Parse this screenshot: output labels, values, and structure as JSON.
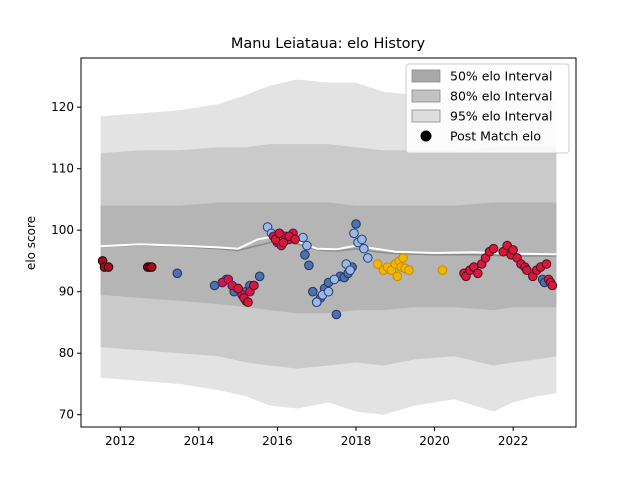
{
  "chart_data": {
    "type": "scatter",
    "title": "Manu Leiataua: elo History",
    "xlabel": "",
    "ylabel": "elo score",
    "xlim": [
      2011.0,
      2023.6
    ],
    "ylim": [
      68.0,
      128.0
    ],
    "x_ticks": [
      2012,
      2014,
      2016,
      2018,
      2020,
      2022
    ],
    "y_ticks": [
      70,
      80,
      90,
      100,
      110,
      120
    ],
    "legend_position": "top-right",
    "grid": false,
    "colors": {
      "band50": "#b5b5b5",
      "band80": "#cacaca",
      "band95": "#e3e3e3",
      "median_line": "#8c8c8c",
      "mean_line": "#ffffff",
      "red_points": "#d9173c",
      "blue_points": "#4a72b0",
      "light_blue_points": "#9ab8e8",
      "orange_points": "#f2b500",
      "purple_edge": "#4a1a6a",
      "dark_red_points": "#a50e1e"
    },
    "legend": [
      {
        "label": "50% elo Interval",
        "kind": "band50"
      },
      {
        "label": "80% elo Interval",
        "kind": "band80"
      },
      {
        "label": "95% elo Interval",
        "kind": "band95"
      },
      {
        "label": "Post Match elo",
        "kind": "marker"
      }
    ],
    "bands": {
      "x": [
        2011.5,
        2012.5,
        2013.5,
        2014.5,
        2015.2,
        2015.8,
        2016.5,
        2017.3,
        2018.0,
        2018.7,
        2019.5,
        2020.5,
        2021.5,
        2022.0,
        2022.6,
        2023.1
      ],
      "p2_5": [
        76.0,
        75.5,
        75.0,
        74.0,
        73.0,
        71.5,
        71.0,
        72.0,
        70.5,
        70.0,
        71.5,
        72.5,
        70.5,
        72.0,
        73.0,
        73.5
      ],
      "p10": [
        81.0,
        80.5,
        80.0,
        79.5,
        78.5,
        78.0,
        77.5,
        78.0,
        78.5,
        78.0,
        79.0,
        79.5,
        78.0,
        78.5,
        79.0,
        79.5
      ],
      "p25": [
        89.5,
        89.0,
        88.5,
        88.0,
        87.5,
        87.0,
        86.5,
        86.5,
        87.0,
        87.0,
        87.5,
        87.5,
        87.0,
        87.5,
        87.5,
        87.5
      ],
      "p75": [
        104.0,
        104.0,
        104.0,
        104.5,
        104.5,
        104.5,
        104.5,
        104.5,
        104.0,
        104.0,
        104.0,
        104.0,
        104.5,
        104.5,
        104.5,
        104.5
      ],
      "p90": [
        112.5,
        113.0,
        113.0,
        113.5,
        113.5,
        114.0,
        114.0,
        114.0,
        113.5,
        113.0,
        113.0,
        113.0,
        113.5,
        113.5,
        113.5,
        113.5
      ],
      "p97_5": [
        118.5,
        119.0,
        119.5,
        120.5,
        122.0,
        123.5,
        124.5,
        124.0,
        124.0,
        122.5,
        122.0,
        121.5,
        122.5,
        122.5,
        122.0,
        121.5
      ]
    },
    "median_line": {
      "x": [
        2011.5,
        2012.5,
        2013.5,
        2014.5,
        2015.0,
        2015.5,
        2016.0,
        2016.5,
        2017.0,
        2017.5,
        2018.0,
        2018.5,
        2019.0,
        2020.0,
        2021.0,
        2022.0,
        2023.1
      ],
      "y": [
        97.3,
        97.6,
        97.4,
        97.0,
        96.7,
        97.5,
        98.3,
        97.8,
        96.8,
        96.6,
        97.0,
        96.5,
        96.2,
        96.0,
        96.0,
        95.8,
        95.8
      ]
    },
    "mean_line": {
      "x": [
        2011.5,
        2012.5,
        2013.5,
        2014.5,
        2015.0,
        2015.5,
        2016.0,
        2016.5,
        2017.0,
        2017.5,
        2018.0,
        2018.5,
        2019.0,
        2020.0,
        2021.0,
        2022.0,
        2023.1
      ],
      "y": [
        97.4,
        97.7,
        97.5,
        97.2,
        97.0,
        98.5,
        99.1,
        98.2,
        97.0,
        96.9,
        97.5,
        97.0,
        96.5,
        96.3,
        96.4,
        96.2,
        96.1
      ]
    },
    "series": [
      {
        "style": "dark_red",
        "x": [
          2011.55,
          2011.6,
          2011.7,
          2012.7,
          2012.75,
          2012.8
        ],
        "y": [
          95.0,
          94.0,
          94.0,
          94.0,
          94.0,
          94.0
        ]
      },
      {
        "style": "blue",
        "x": [
          2013.45,
          2014.4,
          2014.6,
          2014.7,
          2014.85,
          2014.9,
          2015.0,
          2015.2,
          2015.3,
          2015.55,
          2016.7,
          2016.8,
          2016.9,
          2017.0,
          2017.1,
          2017.2,
          2017.3,
          2017.5,
          2017.6,
          2017.7,
          2017.8,
          2017.9,
          2018.0,
          2022.75,
          2022.8
        ],
        "y": [
          93.0,
          91.0,
          91.5,
          92.0,
          91.0,
          90.0,
          90.5,
          90.0,
          91.0,
          92.5,
          96.0,
          94.3,
          90.0,
          88.3,
          89.0,
          90.5,
          91.5,
          86.3,
          92.5,
          92.3,
          93.0,
          94.0,
          101.0,
          92.0,
          91.5
        ]
      },
      {
        "style": "light_blue",
        "x": [
          2015.75,
          2015.85,
          2016.0,
          2016.65,
          2016.75,
          2017.0,
          2017.15,
          2017.3,
          2017.45,
          2017.75,
          2017.85,
          2017.95,
          2018.05,
          2018.15,
          2018.2,
          2018.3
        ],
        "y": [
          100.5,
          99.5,
          98.0,
          98.8,
          97.5,
          88.3,
          89.5,
          90.0,
          92.0,
          94.5,
          93.5,
          99.5,
          98.0,
          98.5,
          97.0,
          95.5
        ]
      },
      {
        "style": "purple_edge",
        "x": [
          2014.6,
          2014.75,
          2014.85,
          2015.0,
          2015.1,
          2015.2,
          2015.3,
          2015.4,
          2015.9,
          2016.0,
          2016.1,
          2016.2,
          2016.3,
          2016.4
        ],
        "y": [
          91.5,
          92.0,
          91.0,
          90.5,
          89.5,
          88.5,
          90.0,
          91.0,
          99.0,
          98.0,
          97.5,
          99.0,
          98.5,
          99.5
        ]
      },
      {
        "style": "orange",
        "x": [
          2018.55,
          2018.7,
          2018.8,
          2018.9,
          2019.0,
          2019.05,
          2019.1,
          2019.15,
          2019.2,
          2019.25,
          2019.35,
          2020.2
        ],
        "y": [
          94.5,
          93.5,
          94.0,
          93.5,
          94.5,
          92.5,
          95.0,
          94.0,
          95.5,
          93.8,
          93.5,
          93.5
        ]
      },
      {
        "style": "red",
        "x": [
          2015.0,
          2015.15,
          2015.25,
          2015.4,
          2015.95,
          2016.05,
          2016.15,
          2016.3,
          2016.45,
          2020.75,
          2020.8,
          2020.9,
          2021.0,
          2021.1,
          2021.2,
          2021.3,
          2021.4,
          2021.5,
          2021.75,
          2021.85,
          2021.95,
          2022.0,
          2022.1,
          2022.2,
          2022.3,
          2022.35,
          2022.5,
          2022.6,
          2022.7,
          2022.85,
          2022.9,
          2022.95,
          2023.0
        ],
        "y": [
          90.5,
          89.0,
          88.3,
          91.0,
          98.5,
          99.5,
          98.0,
          99.0,
          98.5,
          93.0,
          92.5,
          93.5,
          94.0,
          93.0,
          94.5,
          95.5,
          96.5,
          97.0,
          96.5,
          97.5,
          96.0,
          96.8,
          95.5,
          94.5,
          94.0,
          93.5,
          92.5,
          93.5,
          94.0,
          94.5,
          92.0,
          91.5,
          91.0
        ]
      }
    ]
  }
}
